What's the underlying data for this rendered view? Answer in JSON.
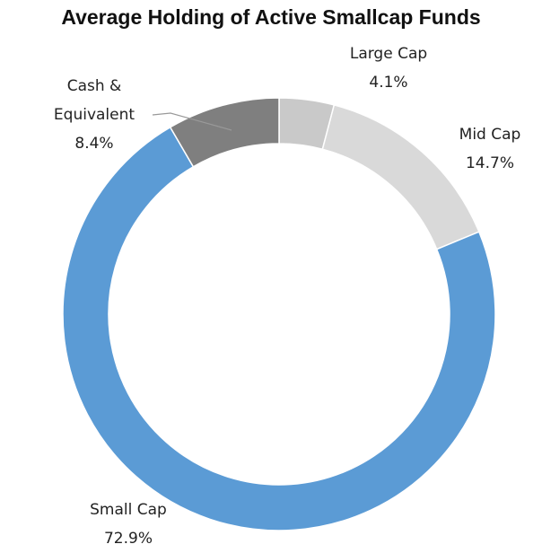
{
  "chart_data": {
    "type": "donut",
    "title": "Average Holding of Active Smallcap Funds",
    "categories": [
      "Large Cap",
      "Mid Cap",
      "Small Cap",
      "Cash & Equivalent"
    ],
    "values": [
      4.1,
      14.7,
      72.9,
      8.4
    ],
    "value_labels": [
      "4.1%",
      "14.7%",
      "72.9%",
      "8.4%"
    ],
    "colors": [
      "#c9c9c9",
      "#d9d9d9",
      "#5b9bd5",
      "#7f7f7f"
    ]
  }
}
